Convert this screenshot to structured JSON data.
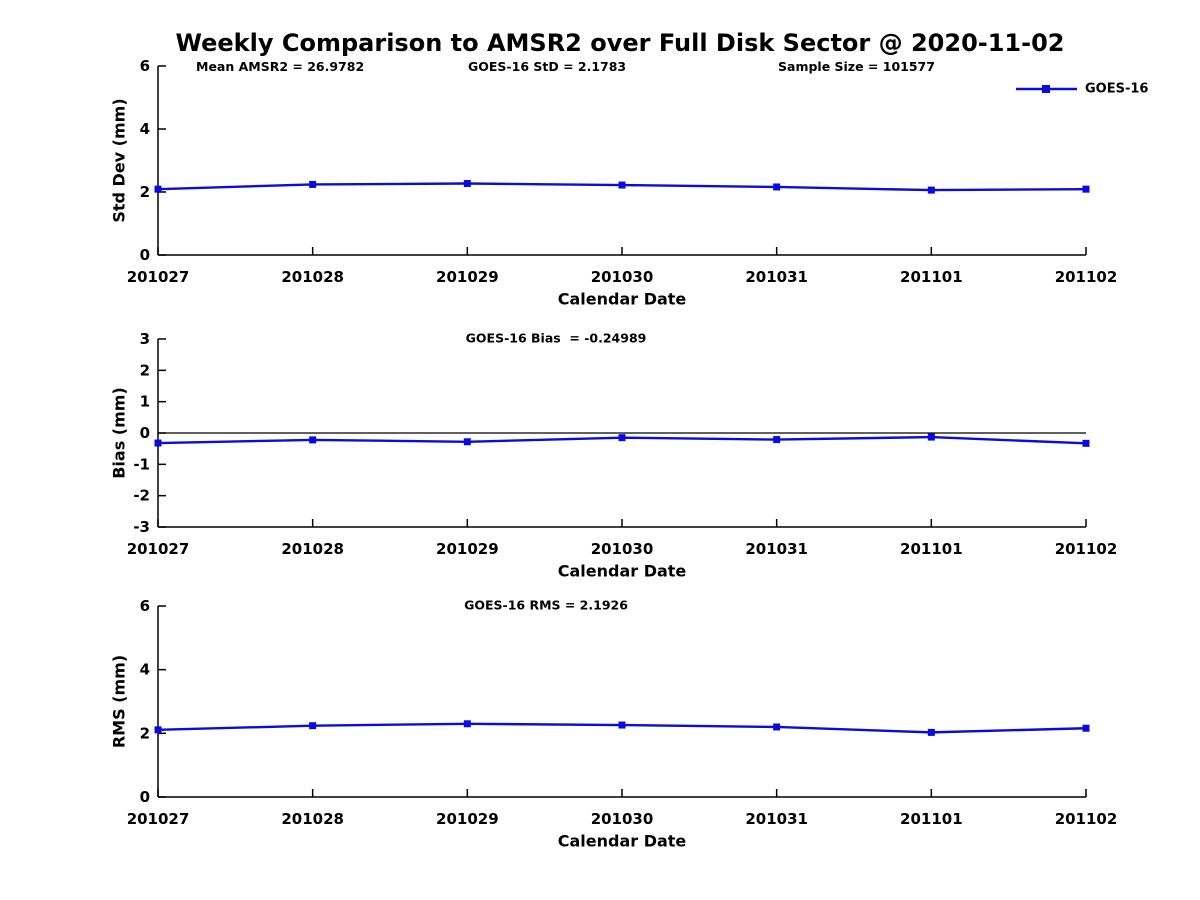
{
  "header": {
    "title": "Weekly Comparison to AMSR2 over Full Disk Sector @ 2020-11-02",
    "stats": [
      "Mean AMSR2 = 26.9782",
      "GOES-16 StD = 2.1783",
      "Sample Size = 101577"
    ]
  },
  "colors": {
    "series": "#0b0bdf",
    "axis": "#000000",
    "zero_line": "#000000",
    "background": "#ffffff"
  },
  "chart_data": [
    {
      "type": "line",
      "name": "std-dev",
      "annotation": "",
      "ylabel": "Std Dev (mm)",
      "xlabel": "Calendar Date",
      "ylim": [
        0,
        6
      ],
      "yticks": [
        0,
        2,
        4,
        6
      ],
      "categories": [
        "201027",
        "201028",
        "201029",
        "201030",
        "201031",
        "201101",
        "201102"
      ],
      "series": [
        {
          "name": "GOES-16",
          "marker": "square",
          "values": [
            2.09,
            2.24,
            2.27,
            2.22,
            2.16,
            2.06,
            2.09
          ]
        }
      ],
      "legend": {
        "entries": [
          "GOES-16"
        ],
        "position": "top-right"
      },
      "zero_line": false,
      "grid": false
    },
    {
      "type": "line",
      "name": "bias",
      "annotation": "GOES-16 Bias  = -0.24989",
      "ylabel": "Bias (mm)",
      "xlabel": "Calendar Date",
      "ylim": [
        -3,
        3
      ],
      "yticks": [
        -3,
        -2,
        -1,
        0,
        1,
        2,
        3
      ],
      "categories": [
        "201027",
        "201028",
        "201029",
        "201030",
        "201031",
        "201101",
        "201102"
      ],
      "series": [
        {
          "name": "GOES-16",
          "marker": "square",
          "values": [
            -0.32,
            -0.22,
            -0.28,
            -0.15,
            -0.21,
            -0.13,
            -0.33
          ]
        }
      ],
      "legend": null,
      "zero_line": true,
      "grid": false
    },
    {
      "type": "line",
      "name": "rms",
      "annotation": "GOES-16 RMS = 2.1926",
      "ylabel": "RMS (mm)",
      "xlabel": "Calendar Date",
      "ylim": [
        0,
        6
      ],
      "yticks": [
        0,
        2,
        4,
        6
      ],
      "categories": [
        "201027",
        "201028",
        "201029",
        "201030",
        "201031",
        "201101",
        "201102"
      ],
      "series": [
        {
          "name": "GOES-16",
          "marker": "square",
          "values": [
            2.11,
            2.24,
            2.3,
            2.26,
            2.2,
            2.03,
            2.16
          ]
        }
      ],
      "legend": null,
      "zero_line": false,
      "grid": false
    }
  ]
}
